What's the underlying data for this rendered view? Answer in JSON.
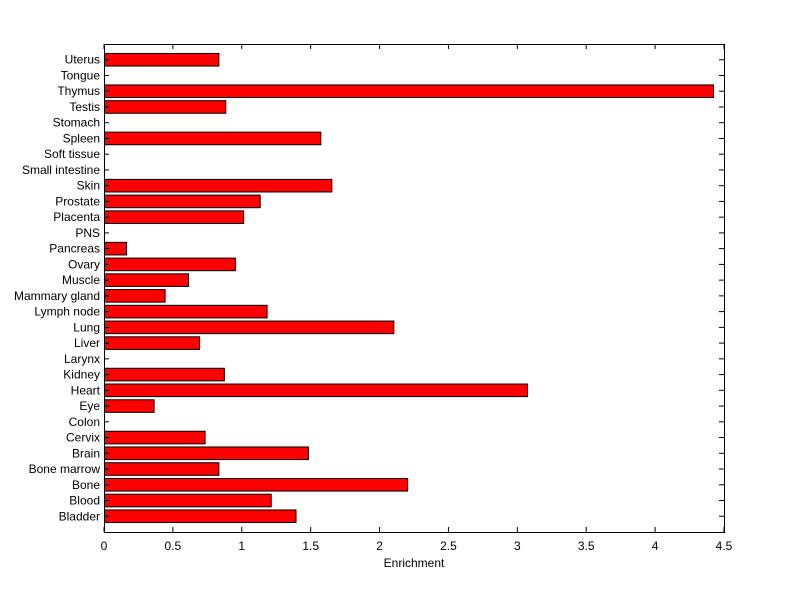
{
  "chart_data": {
    "type": "bar",
    "orientation": "horizontal",
    "title": "",
    "xlabel": "Enrichment",
    "ylabel": "",
    "xlim": [
      0,
      4.5
    ],
    "xticks": [
      "0",
      "0.5",
      "1",
      "1.5",
      "2",
      "2.5",
      "3",
      "3.5",
      "4",
      "4.5"
    ],
    "grid": false,
    "bar_color": "#ff0000",
    "categories": [
      "Bladder",
      "Blood",
      "Bone",
      "Bone marrow",
      "Brain",
      "Cervix",
      "Colon",
      "Eye",
      "Heart",
      "Kidney",
      "Larynx",
      "Liver",
      "Lung",
      "Lymph node",
      "Mammary gland",
      "Muscle",
      "Ovary",
      "Pancreas",
      "PNS",
      "Placenta",
      "Prostate",
      "Skin",
      "Small intestine",
      "Soft tissue",
      "Spleen",
      "Stomach",
      "Testis",
      "Thymus",
      "Tongue",
      "Uterus"
    ],
    "values": [
      1.39,
      1.21,
      2.2,
      0.83,
      1.48,
      0.73,
      0,
      0.36,
      3.07,
      0.87,
      0,
      0.69,
      2.1,
      1.18,
      0.44,
      0.61,
      0.95,
      0.16,
      0,
      1.01,
      1.13,
      1.65,
      0,
      0,
      1.57,
      0,
      0.88,
      4.42,
      0,
      0.83
    ]
  }
}
